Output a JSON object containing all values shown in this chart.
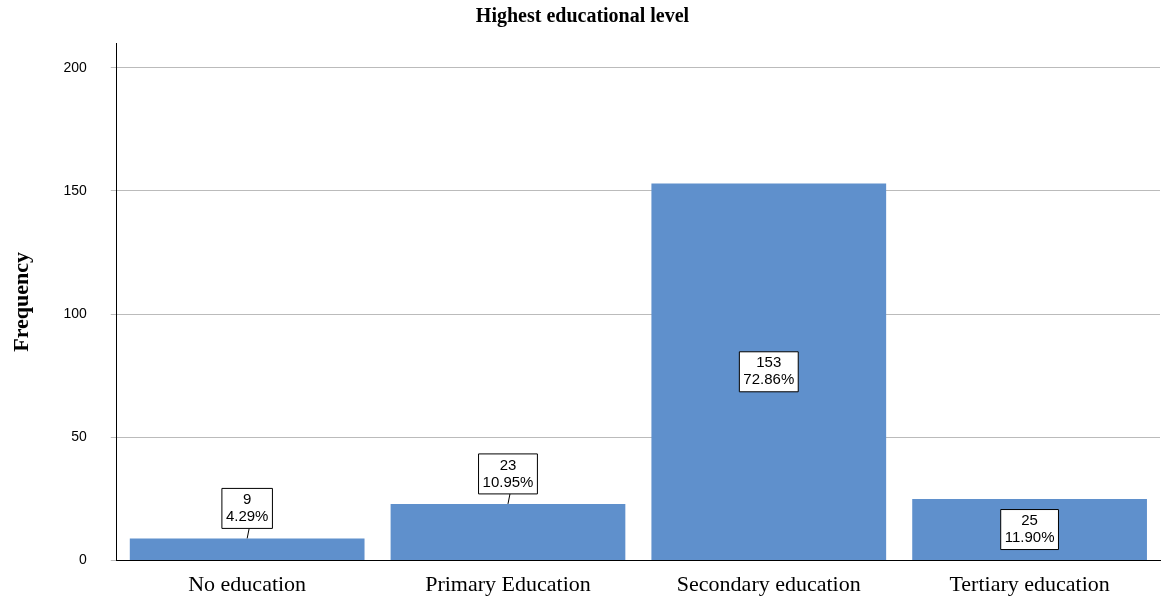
{
  "chart_data": {
    "type": "bar",
    "title": "Highest educational level",
    "ylabel": "Frequency",
    "categories": [
      "No education",
      "Primary Education",
      "Secondary education",
      "Tertiary education"
    ],
    "values": [
      9,
      23,
      153,
      25
    ],
    "value_labels": [
      "9\n4.29%",
      "23\n10.95%",
      "153\n72.86%",
      "25\n11.90%"
    ],
    "color": "#5f90cc",
    "ylim": [
      0,
      210
    ],
    "yticks": [
      0,
      50,
      100,
      150,
      200
    ],
    "grid": "y",
    "legend": false
  }
}
